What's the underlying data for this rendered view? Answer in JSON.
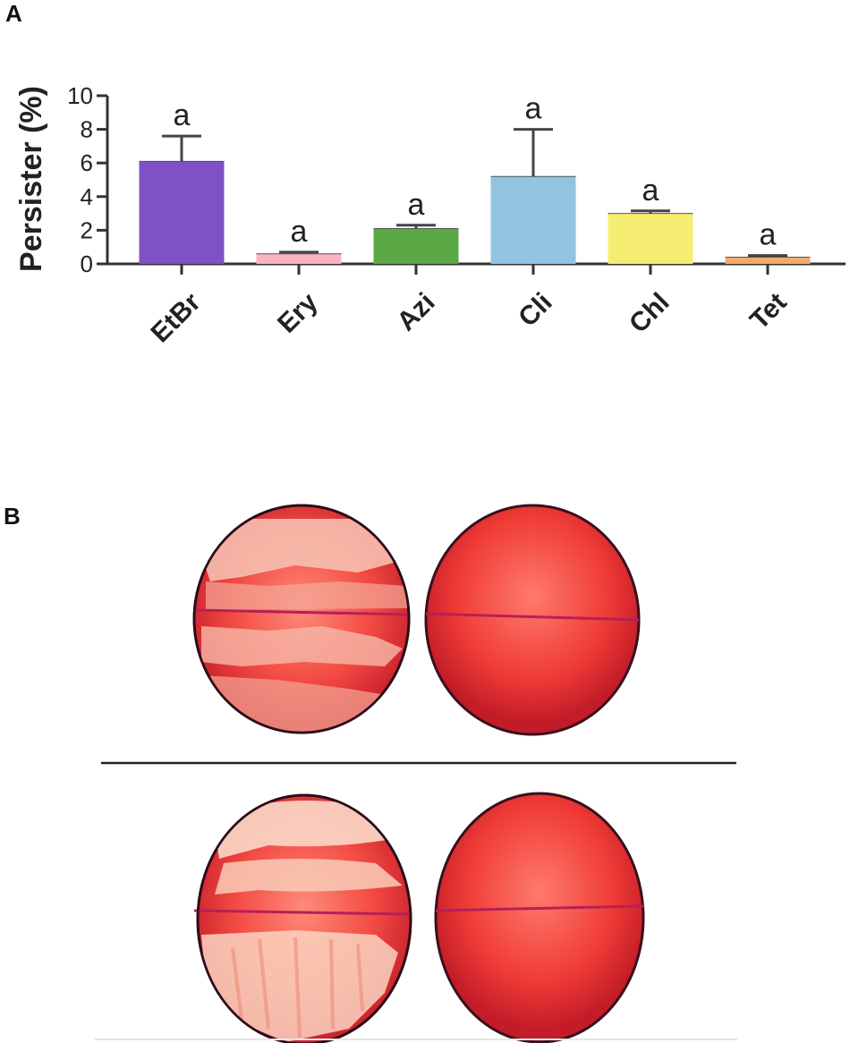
{
  "panels": {
    "a_label": "A",
    "b_label": "B"
  },
  "chart_data": {
    "type": "bar",
    "ylabel": "Persister (%)",
    "ylim": [
      0,
      10
    ],
    "yticks": [
      "0",
      "2",
      "4",
      "6",
      "8",
      "10"
    ],
    "categories": [
      "EtBr",
      "Ery",
      "Azi",
      "Cli",
      "Chl",
      "Tet"
    ],
    "values": [
      6.1,
      0.6,
      2.1,
      5.2,
      3.0,
      0.4
    ],
    "errors": [
      1.5,
      0.1,
      0.2,
      2.8,
      0.15,
      0.1
    ],
    "significance": [
      "a",
      "a",
      "a",
      "a",
      "a",
      "a"
    ],
    "colors": [
      "#7e52c4",
      "#f9b3c3",
      "#5aa843",
      "#92c3e0",
      "#f6ee73",
      "#f6a96c"
    ],
    "legend": "none",
    "grid": false
  },
  "plates": {
    "description_colors": {
      "agar": "#ee3f3a",
      "colony": "#f6c9b8",
      "rim": "#2a0c18",
      "line": "#b62057"
    }
  }
}
